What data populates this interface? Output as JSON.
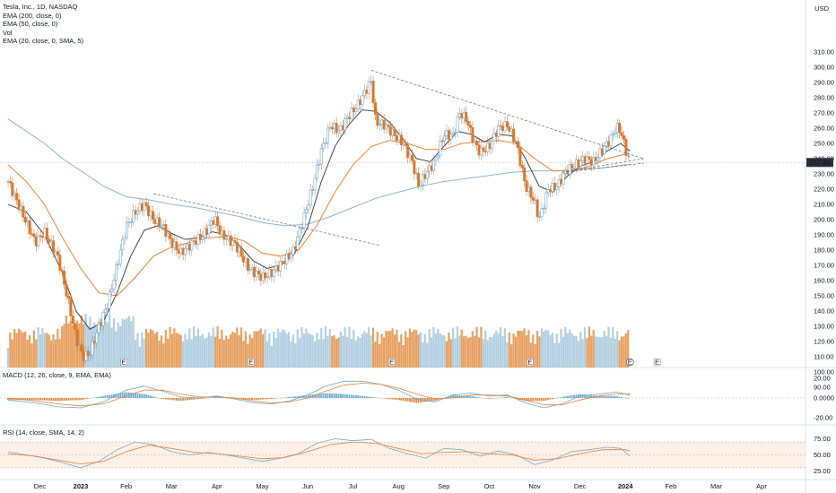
{
  "header": {
    "title": "Tesla, Inc., 1D, NASDAQ",
    "indicators": [
      "EMA (200, close, 0)",
      "EMA (50, close, 0)",
      "Vol",
      "EMA (20, close, 0, SMA, 5)"
    ],
    "currency": "USD"
  },
  "macd_pane": {
    "label": "MACD (12, 26, close, 9, EMA, EMA)"
  },
  "rsi_pane": {
    "label": "RSI (14, close, SMA, 14, 2)"
  },
  "colors": {
    "up": "#9fc3da",
    "down": "#e0883a",
    "ema200": "#8fb8c8",
    "ema50": "#e8833a",
    "ema20": "#333333"
  },
  "chart_data": {
    "type": "candlestick",
    "price_axis": {
      "ticks": [
        90,
        100,
        110,
        120,
        130,
        140,
        150,
        160,
        170,
        180,
        190,
        200,
        210,
        220,
        230,
        240,
        250,
        260,
        270,
        280,
        290,
        300,
        310
      ],
      "last_price": "237.49"
    },
    "macd_axis": {
      "ticks": [
        "20.00",
        "0.0000",
        "-20.00"
      ]
    },
    "rsi_axis": {
      "ticks": [
        "75.00",
        "50.00",
        "25.00"
      ]
    },
    "x_ticks": [
      {
        "label": "Dec",
        "m": -0.9
      },
      {
        "label": "2023",
        "m": 0
      },
      {
        "label": "Feb",
        "m": 1
      },
      {
        "label": "Mar",
        "m": 2
      },
      {
        "label": "Apr",
        "m": 3
      },
      {
        "label": "May",
        "m": 4
      },
      {
        "label": "Jun",
        "m": 5
      },
      {
        "label": "Jul",
        "m": 6
      },
      {
        "label": "Aug",
        "m": 7
      },
      {
        "label": "Sep",
        "m": 8
      },
      {
        "label": "Oct",
        "m": 9
      },
      {
        "label": "Nov",
        "m": 10
      },
      {
        "label": "Dec",
        "m": 11
      },
      {
        "label": "2024",
        "m": 12
      },
      {
        "label": "Feb",
        "m": 13
      },
      {
        "label": "Mar",
        "m": 14
      },
      {
        "label": "Apr",
        "m": 15
      }
    ],
    "close_path": [
      {
        "m": -1.6,
        "p": 225
      },
      {
        "m": -1.3,
        "p": 205
      },
      {
        "m": -1.0,
        "p": 185
      },
      {
        "m": -0.8,
        "p": 192
      },
      {
        "m": -0.5,
        "p": 175
      },
      {
        "m": -0.3,
        "p": 150
      },
      {
        "m": -0.1,
        "p": 122
      },
      {
        "m": 0.05,
        "p": 110
      },
      {
        "m": 0.2,
        "p": 112
      },
      {
        "m": 0.4,
        "p": 130
      },
      {
        "m": 0.6,
        "p": 145
      },
      {
        "m": 0.8,
        "p": 170
      },
      {
        "m": 1.0,
        "p": 195
      },
      {
        "m": 1.2,
        "p": 205
      },
      {
        "m": 1.4,
        "p": 210
      },
      {
        "m": 1.6,
        "p": 200
      },
      {
        "m": 1.8,
        "p": 196
      },
      {
        "m": 2.0,
        "p": 185
      },
      {
        "m": 2.2,
        "p": 178
      },
      {
        "m": 2.4,
        "p": 183
      },
      {
        "m": 2.7,
        "p": 190
      },
      {
        "m": 2.95,
        "p": 201
      },
      {
        "m": 3.1,
        "p": 190
      },
      {
        "m": 3.4,
        "p": 184
      },
      {
        "m": 3.7,
        "p": 168
      },
      {
        "m": 4.0,
        "p": 162
      },
      {
        "m": 4.2,
        "p": 165
      },
      {
        "m": 4.45,
        "p": 172
      },
      {
        "m": 4.7,
        "p": 180
      },
      {
        "m": 4.9,
        "p": 200
      },
      {
        "m": 5.1,
        "p": 220
      },
      {
        "m": 5.3,
        "p": 245
      },
      {
        "m": 5.5,
        "p": 262
      },
      {
        "m": 5.7,
        "p": 258
      },
      {
        "m": 5.9,
        "p": 268
      },
      {
        "m": 6.1,
        "p": 275
      },
      {
        "m": 6.25,
        "p": 283
      },
      {
        "m": 6.4,
        "p": 291
      },
      {
        "m": 6.5,
        "p": 264
      },
      {
        "m": 6.7,
        "p": 262
      },
      {
        "m": 6.9,
        "p": 256
      },
      {
        "m": 7.1,
        "p": 250
      },
      {
        "m": 7.3,
        "p": 238
      },
      {
        "m": 7.45,
        "p": 222
      },
      {
        "m": 7.6,
        "p": 230
      },
      {
        "m": 7.8,
        "p": 238
      },
      {
        "m": 8.0,
        "p": 256
      },
      {
        "m": 8.2,
        "p": 255
      },
      {
        "m": 8.35,
        "p": 270
      },
      {
        "m": 8.5,
        "p": 266
      },
      {
        "m": 8.65,
        "p": 252
      },
      {
        "m": 8.8,
        "p": 244
      },
      {
        "m": 9.0,
        "p": 248
      },
      {
        "m": 9.2,
        "p": 260
      },
      {
        "m": 9.4,
        "p": 262
      },
      {
        "m": 9.6,
        "p": 250
      },
      {
        "m": 9.8,
        "p": 222
      },
      {
        "m": 10.0,
        "p": 212
      },
      {
        "m": 10.1,
        "p": 200
      },
      {
        "m": 10.3,
        "p": 220
      },
      {
        "m": 10.5,
        "p": 222
      },
      {
        "m": 10.7,
        "p": 232
      },
      {
        "m": 10.9,
        "p": 236
      },
      {
        "m": 11.1,
        "p": 240
      },
      {
        "m": 11.3,
        "p": 238
      },
      {
        "m": 11.5,
        "p": 246
      },
      {
        "m": 11.7,
        "p": 254
      },
      {
        "m": 11.8,
        "p": 261
      },
      {
        "m": 11.9,
        "p": 258
      },
      {
        "m": 12.0,
        "p": 246
      },
      {
        "m": 12.1,
        "p": 238
      }
    ],
    "ema20_path": [
      {
        "m": -1.6,
        "p": 210
      },
      {
        "m": -1.2,
        "p": 205
      },
      {
        "m": -0.8,
        "p": 190
      },
      {
        "m": -0.4,
        "p": 165
      },
      {
        "m": -0.1,
        "p": 140
      },
      {
        "m": 0.2,
        "p": 128
      },
      {
        "m": 0.5,
        "p": 133
      },
      {
        "m": 0.8,
        "p": 152
      },
      {
        "m": 1.1,
        "p": 176
      },
      {
        "m": 1.4,
        "p": 193
      },
      {
        "m": 1.7,
        "p": 196
      },
      {
        "m": 2.0,
        "p": 191
      },
      {
        "m": 2.3,
        "p": 187
      },
      {
        "m": 2.6,
        "p": 188
      },
      {
        "m": 2.9,
        "p": 192
      },
      {
        "m": 3.2,
        "p": 190
      },
      {
        "m": 3.5,
        "p": 183
      },
      {
        "m": 3.8,
        "p": 173
      },
      {
        "m": 4.1,
        "p": 168
      },
      {
        "m": 4.4,
        "p": 170
      },
      {
        "m": 4.7,
        "p": 177
      },
      {
        "m": 5.0,
        "p": 195
      },
      {
        "m": 5.3,
        "p": 225
      },
      {
        "m": 5.6,
        "p": 248
      },
      {
        "m": 5.9,
        "p": 262
      },
      {
        "m": 6.2,
        "p": 272
      },
      {
        "m": 6.5,
        "p": 271
      },
      {
        "m": 6.8,
        "p": 264
      },
      {
        "m": 7.1,
        "p": 253
      },
      {
        "m": 7.4,
        "p": 240
      },
      {
        "m": 7.7,
        "p": 238
      },
      {
        "m": 8.0,
        "p": 248
      },
      {
        "m": 8.3,
        "p": 258
      },
      {
        "m": 8.6,
        "p": 256
      },
      {
        "m": 8.9,
        "p": 251
      },
      {
        "m": 9.2,
        "p": 256
      },
      {
        "m": 9.5,
        "p": 255
      },
      {
        "m": 9.8,
        "p": 240
      },
      {
        "m": 10.1,
        "p": 222
      },
      {
        "m": 10.4,
        "p": 218
      },
      {
        "m": 10.7,
        "p": 228
      },
      {
        "m": 11.0,
        "p": 235
      },
      {
        "m": 11.3,
        "p": 238
      },
      {
        "m": 11.6,
        "p": 245
      },
      {
        "m": 11.9,
        "p": 250
      },
      {
        "m": 12.1,
        "p": 245
      }
    ],
    "ema50_path": [
      {
        "m": -1.6,
        "p": 236
      },
      {
        "m": -1.2,
        "p": 225
      },
      {
        "m": -0.8,
        "p": 210
      },
      {
        "m": -0.4,
        "p": 188
      },
      {
        "m": 0.0,
        "p": 168
      },
      {
        "m": 0.4,
        "p": 152
      },
      {
        "m": 0.8,
        "p": 150
      },
      {
        "m": 1.2,
        "p": 162
      },
      {
        "m": 1.6,
        "p": 176
      },
      {
        "m": 2.0,
        "p": 182
      },
      {
        "m": 2.4,
        "p": 185
      },
      {
        "m": 2.8,
        "p": 188
      },
      {
        "m": 3.2,
        "p": 189
      },
      {
        "m": 3.6,
        "p": 186
      },
      {
        "m": 4.0,
        "p": 178
      },
      {
        "m": 4.4,
        "p": 176
      },
      {
        "m": 4.8,
        "p": 180
      },
      {
        "m": 5.2,
        "p": 196
      },
      {
        "m": 5.6,
        "p": 218
      },
      {
        "m": 6.0,
        "p": 236
      },
      {
        "m": 6.4,
        "p": 248
      },
      {
        "m": 6.8,
        "p": 252
      },
      {
        "m": 7.2,
        "p": 250
      },
      {
        "m": 7.6,
        "p": 246
      },
      {
        "m": 8.0,
        "p": 246
      },
      {
        "m": 8.4,
        "p": 250
      },
      {
        "m": 8.8,
        "p": 251
      },
      {
        "m": 9.2,
        "p": 252
      },
      {
        "m": 9.6,
        "p": 250
      },
      {
        "m": 10.0,
        "p": 240
      },
      {
        "m": 10.4,
        "p": 232
      },
      {
        "m": 10.8,
        "p": 232
      },
      {
        "m": 11.2,
        "p": 235
      },
      {
        "m": 11.6,
        "p": 240
      },
      {
        "m": 12.0,
        "p": 243
      },
      {
        "m": 12.1,
        "p": 241
      }
    ],
    "ema200_path": [
      {
        "m": -1.6,
        "p": 266
      },
      {
        "m": -1.2,
        "p": 258
      },
      {
        "m": -0.8,
        "p": 250
      },
      {
        "m": -0.4,
        "p": 240
      },
      {
        "m": 0.0,
        "p": 232
      },
      {
        "m": 0.5,
        "p": 222
      },
      {
        "m": 1.0,
        "p": 215
      },
      {
        "m": 1.5,
        "p": 213
      },
      {
        "m": 2.0,
        "p": 210
      },
      {
        "m": 2.5,
        "p": 208
      },
      {
        "m": 3.0,
        "p": 205
      },
      {
        "m": 3.5,
        "p": 202
      },
      {
        "m": 4.0,
        "p": 198
      },
      {
        "m": 4.5,
        "p": 196
      },
      {
        "m": 5.0,
        "p": 197
      },
      {
        "m": 5.5,
        "p": 202
      },
      {
        "m": 6.0,
        "p": 208
      },
      {
        "m": 6.5,
        "p": 214
      },
      {
        "m": 7.0,
        "p": 218
      },
      {
        "m": 7.5,
        "p": 222
      },
      {
        "m": 8.0,
        "p": 225
      },
      {
        "m": 8.5,
        "p": 227
      },
      {
        "m": 9.0,
        "p": 229
      },
      {
        "m": 9.5,
        "p": 231
      },
      {
        "m": 10.0,
        "p": 232
      },
      {
        "m": 10.5,
        "p": 232
      },
      {
        "m": 11.0,
        "p": 233
      },
      {
        "m": 11.5,
        "p": 234
      },
      {
        "m": 12.0,
        "p": 236
      },
      {
        "m": 12.1,
        "p": 236
      }
    ],
    "trendlines": [
      [
        {
          "m": 1.6,
          "p": 217
        },
        {
          "m": 6.6,
          "p": 183
        }
      ],
      [
        {
          "m": 6.4,
          "p": 298
        },
        {
          "m": 12.4,
          "p": 240
        }
      ],
      [
        {
          "m": 10.6,
          "p": 231
        },
        {
          "m": 12.4,
          "p": 240
        }
      ],
      [
        {
          "m": 10.6,
          "p": 231
        },
        {
          "m": 12.4,
          "p": 237
        }
      ]
    ],
    "earnings_markers": [
      {
        "m": 0.95,
        "label": "E"
      },
      {
        "m": 3.75,
        "label": "E"
      },
      {
        "m": 6.85,
        "label": "E"
      },
      {
        "m": 9.9,
        "label": "E"
      },
      {
        "m": 12.1,
        "label": "E"
      },
      {
        "m": 12.7,
        "label": "E"
      }
    ],
    "macd_path": [
      {
        "m": -1.6,
        "p": -2
      },
      {
        "m": -1.0,
        "p": -5
      },
      {
        "m": -0.5,
        "p": -9
      },
      {
        "m": 0.0,
        "p": -10
      },
      {
        "m": 0.5,
        "p": -4
      },
      {
        "m": 1.0,
        "p": 8
      },
      {
        "m": 1.4,
        "p": 12
      },
      {
        "m": 1.8,
        "p": 7
      },
      {
        "m": 2.2,
        "p": 1
      },
      {
        "m": 2.6,
        "p": 0
      },
      {
        "m": 3.0,
        "p": 2
      },
      {
        "m": 3.4,
        "p": -1
      },
      {
        "m": 3.8,
        "p": -5
      },
      {
        "m": 4.2,
        "p": -6
      },
      {
        "m": 4.6,
        "p": -3
      },
      {
        "m": 5.0,
        "p": 3
      },
      {
        "m": 5.4,
        "p": 12
      },
      {
        "m": 5.8,
        "p": 17
      },
      {
        "m": 6.2,
        "p": 17
      },
      {
        "m": 6.6,
        "p": 14
      },
      {
        "m": 7.0,
        "p": 8
      },
      {
        "m": 7.4,
        "p": -1
      },
      {
        "m": 7.8,
        "p": -4
      },
      {
        "m": 8.2,
        "p": 3
      },
      {
        "m": 8.6,
        "p": 5
      },
      {
        "m": 9.0,
        "p": 2
      },
      {
        "m": 9.4,
        "p": 3
      },
      {
        "m": 9.8,
        "p": -5
      },
      {
        "m": 10.2,
        "p": -10
      },
      {
        "m": 10.6,
        "p": -6
      },
      {
        "m": 11.0,
        "p": 2
      },
      {
        "m": 11.4,
        "p": 4
      },
      {
        "m": 11.8,
        "p": 6
      },
      {
        "m": 12.1,
        "p": 3
      }
    ],
    "macd_signal_path": [
      {
        "m": -1.6,
        "p": 0
      },
      {
        "m": -1.0,
        "p": -3
      },
      {
        "m": -0.5,
        "p": -6
      },
      {
        "m": 0.0,
        "p": -8
      },
      {
        "m": 0.5,
        "p": -6
      },
      {
        "m": 1.0,
        "p": 2
      },
      {
        "m": 1.4,
        "p": 8
      },
      {
        "m": 1.8,
        "p": 8
      },
      {
        "m": 2.2,
        "p": 4
      },
      {
        "m": 2.6,
        "p": 1
      },
      {
        "m": 3.0,
        "p": 1
      },
      {
        "m": 3.4,
        "p": 0
      },
      {
        "m": 3.8,
        "p": -3
      },
      {
        "m": 4.2,
        "p": -5
      },
      {
        "m": 4.6,
        "p": -4
      },
      {
        "m": 5.0,
        "p": 0
      },
      {
        "m": 5.4,
        "p": 7
      },
      {
        "m": 5.8,
        "p": 13
      },
      {
        "m": 6.2,
        "p": 15
      },
      {
        "m": 6.6,
        "p": 14
      },
      {
        "m": 7.0,
        "p": 10
      },
      {
        "m": 7.4,
        "p": 4
      },
      {
        "m": 7.8,
        "p": -1
      },
      {
        "m": 8.2,
        "p": 0
      },
      {
        "m": 8.6,
        "p": 3
      },
      {
        "m": 9.0,
        "p": 3
      },
      {
        "m": 9.4,
        "p": 2
      },
      {
        "m": 9.8,
        "p": -2
      },
      {
        "m": 10.2,
        "p": -7
      },
      {
        "m": 10.6,
        "p": -7
      },
      {
        "m": 11.0,
        "p": -2
      },
      {
        "m": 11.4,
        "p": 2
      },
      {
        "m": 11.8,
        "p": 4
      },
      {
        "m": 12.1,
        "p": 4
      }
    ],
    "rsi_path": [
      {
        "m": -1.6,
        "p": 55
      },
      {
        "m": -1.2,
        "p": 50
      },
      {
        "m": -0.8,
        "p": 45
      },
      {
        "m": -0.4,
        "p": 38
      },
      {
        "m": 0.0,
        "p": 30
      },
      {
        "m": 0.4,
        "p": 40
      },
      {
        "m": 0.8,
        "p": 58
      },
      {
        "m": 1.2,
        "p": 70
      },
      {
        "m": 1.6,
        "p": 66
      },
      {
        "m": 2.0,
        "p": 55
      },
      {
        "m": 2.4,
        "p": 50
      },
      {
        "m": 2.8,
        "p": 54
      },
      {
        "m": 3.2,
        "p": 50
      },
      {
        "m": 3.6,
        "p": 45
      },
      {
        "m": 4.0,
        "p": 40
      },
      {
        "m": 4.4,
        "p": 45
      },
      {
        "m": 4.8,
        "p": 52
      },
      {
        "m": 5.2,
        "p": 68
      },
      {
        "m": 5.6,
        "p": 75
      },
      {
        "m": 6.0,
        "p": 72
      },
      {
        "m": 6.4,
        "p": 74
      },
      {
        "m": 6.8,
        "p": 60
      },
      {
        "m": 7.2,
        "p": 52
      },
      {
        "m": 7.6,
        "p": 45
      },
      {
        "m": 8.0,
        "p": 60
      },
      {
        "m": 8.4,
        "p": 58
      },
      {
        "m": 8.8,
        "p": 48
      },
      {
        "m": 9.2,
        "p": 56
      },
      {
        "m": 9.6,
        "p": 50
      },
      {
        "m": 10.0,
        "p": 35
      },
      {
        "m": 10.4,
        "p": 42
      },
      {
        "m": 10.8,
        "p": 55
      },
      {
        "m": 11.2,
        "p": 58
      },
      {
        "m": 11.6,
        "p": 62
      },
      {
        "m": 11.9,
        "p": 60
      },
      {
        "m": 12.1,
        "p": 48
      }
    ],
    "rsi_ma_path": [
      {
        "m": -1.6,
        "p": 52
      },
      {
        "m": -1.0,
        "p": 48
      },
      {
        "m": -0.5,
        "p": 42
      },
      {
        "m": 0.0,
        "p": 36
      },
      {
        "m": 0.5,
        "p": 40
      },
      {
        "m": 1.0,
        "p": 55
      },
      {
        "m": 1.5,
        "p": 65
      },
      {
        "m": 2.0,
        "p": 60
      },
      {
        "m": 2.5,
        "p": 54
      },
      {
        "m": 3.0,
        "p": 52
      },
      {
        "m": 3.5,
        "p": 48
      },
      {
        "m": 4.0,
        "p": 44
      },
      {
        "m": 4.5,
        "p": 46
      },
      {
        "m": 5.0,
        "p": 55
      },
      {
        "m": 5.5,
        "p": 66
      },
      {
        "m": 6.0,
        "p": 70
      },
      {
        "m": 6.5,
        "p": 68
      },
      {
        "m": 7.0,
        "p": 60
      },
      {
        "m": 7.5,
        "p": 52
      },
      {
        "m": 8.0,
        "p": 54
      },
      {
        "m": 8.5,
        "p": 55
      },
      {
        "m": 9.0,
        "p": 52
      },
      {
        "m": 9.5,
        "p": 50
      },
      {
        "m": 10.0,
        "p": 42
      },
      {
        "m": 10.5,
        "p": 44
      },
      {
        "m": 11.0,
        "p": 52
      },
      {
        "m": 11.5,
        "p": 58
      },
      {
        "m": 12.0,
        "p": 58
      },
      {
        "m": 12.1,
        "p": 56
      }
    ]
  }
}
